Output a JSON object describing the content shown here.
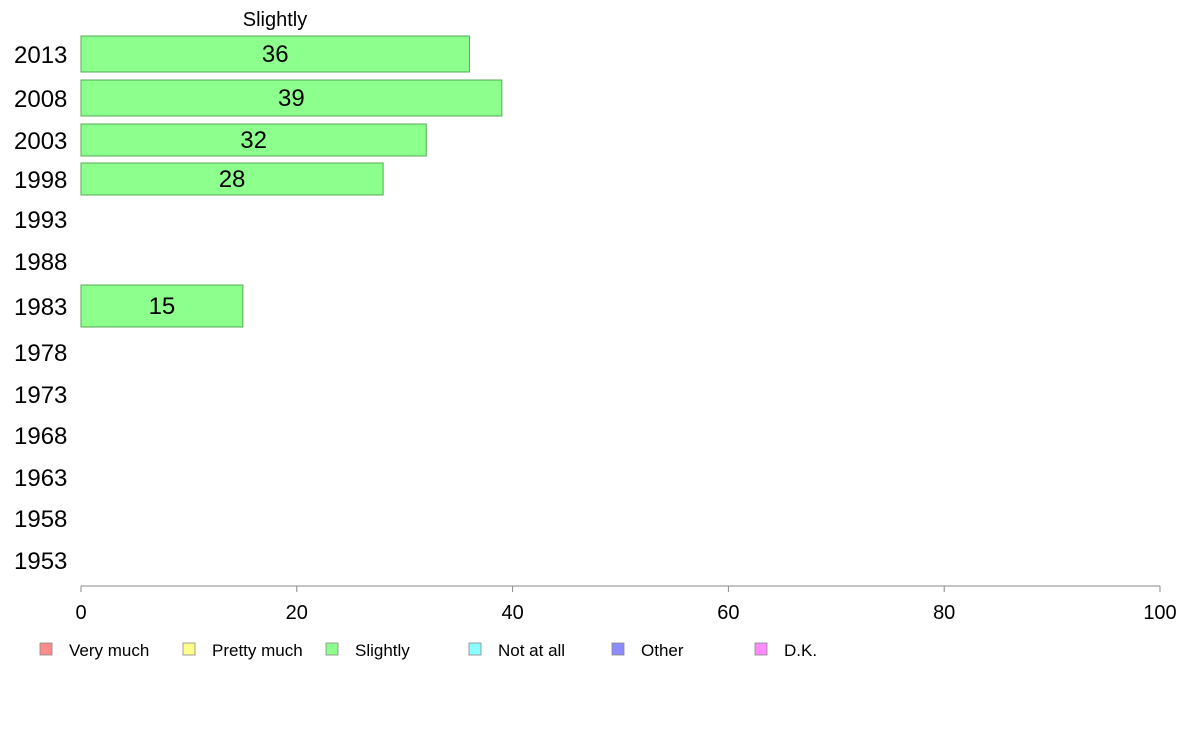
{
  "chart_data": {
    "type": "bar",
    "orientation": "horizontal",
    "title": "Slightly",
    "categories": [
      "2013",
      "2008",
      "2003",
      "1998",
      "1993",
      "1988",
      "1983",
      "1978",
      "1973",
      "1968",
      "1963",
      "1958",
      "1953"
    ],
    "series": [
      {
        "name": "Slightly",
        "values": [
          36,
          39,
          32,
          28,
          null,
          null,
          15,
          null,
          null,
          null,
          null,
          null,
          null
        ]
      }
    ],
    "xlim": [
      0,
      100
    ],
    "xticks": [
      0,
      20,
      40,
      60,
      80,
      100
    ],
    "xlabel": "",
    "ylabel": "",
    "grid": false,
    "legend": {
      "position": "bottom",
      "items": [
        {
          "label": "Very much",
          "color": "#ff8c8c"
        },
        {
          "label": "Pretty much",
          "color": "#ffff8c"
        },
        {
          "label": "Slightly",
          "color": "#8cff8c"
        },
        {
          "label": "Not at all",
          "color": "#8cffff"
        },
        {
          "label": "Other",
          "color": "#8c8cff"
        },
        {
          "label": "D.K.",
          "color": "#ff8cff"
        }
      ]
    },
    "colors": {
      "bar_fill": "#8cff8c",
      "bar_stroke": "#55aa55",
      "axis": "#888888"
    }
  }
}
